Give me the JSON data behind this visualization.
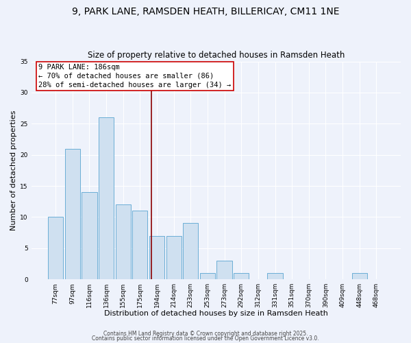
{
  "title": "9, PARK LANE, RAMSDEN HEATH, BILLERICAY, CM11 1NE",
  "subtitle": "Size of property relative to detached houses in Ramsden Heath",
  "xlabel": "Distribution of detached houses by size in Ramsden Heath",
  "ylabel": "Number of detached properties",
  "bar_labels": [
    "77sqm",
    "97sqm",
    "116sqm",
    "136sqm",
    "155sqm",
    "175sqm",
    "194sqm",
    "214sqm",
    "233sqm",
    "253sqm",
    "273sqm",
    "292sqm",
    "312sqm",
    "331sqm",
    "351sqm",
    "370sqm",
    "390sqm",
    "409sqm",
    "448sqm",
    "468sqm"
  ],
  "bar_values": [
    10,
    21,
    14,
    26,
    12,
    11,
    7,
    7,
    9,
    1,
    3,
    1,
    0,
    1,
    0,
    0,
    0,
    0,
    1,
    0
  ],
  "bar_color": "#cfe0f0",
  "bar_edge_color": "#6baed6",
  "ylim": [
    0,
    35
  ],
  "yticks": [
    0,
    5,
    10,
    15,
    20,
    25,
    30,
    35
  ],
  "property_line_x": 5.68,
  "property_line_label": "9 PARK LANE: 186sqm",
  "annotation_line1": "← 70% of detached houses are smaller (86)",
  "annotation_line2": "28% of semi-detached houses are larger (34) →",
  "footer1": "Contains HM Land Registry data © Crown copyright and database right 2025.",
  "footer2": "Contains public sector information licensed under the Open Government Licence v3.0.",
  "background_color": "#eef2fb",
  "grid_color": "#ffffff",
  "title_fontsize": 10,
  "subtitle_fontsize": 8.5,
  "axis_label_fontsize": 8,
  "tick_fontsize": 6.5,
  "annotation_fontsize": 7.5,
  "footer_fontsize": 5.5
}
